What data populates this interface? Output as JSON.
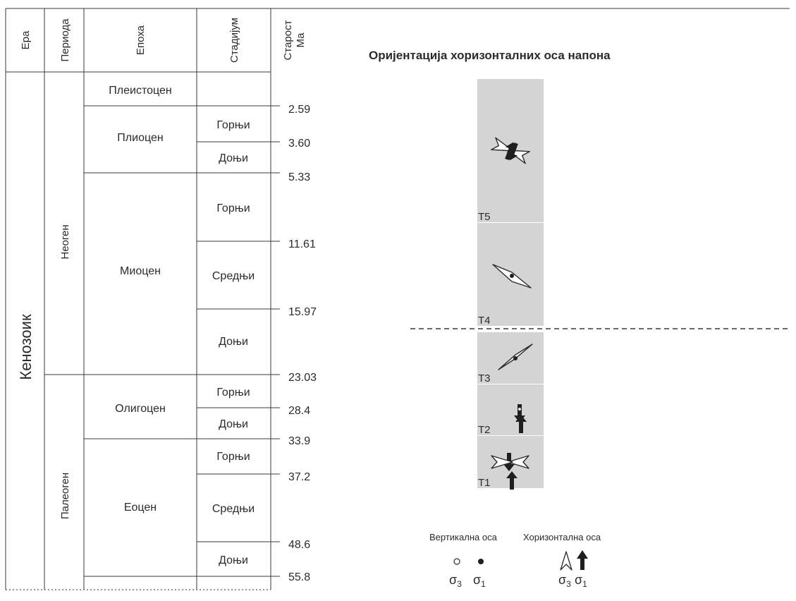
{
  "header": {
    "era": "Ера",
    "period": "Периода",
    "epoch": "Епоха",
    "stage": "Стадијум",
    "age_line1": "Старост",
    "age_line2": "Ма",
    "title": "Оријентација хоризонталних оса напона"
  },
  "era": "Кенозоик",
  "periods": [
    "Неоген",
    "Палеоген"
  ],
  "epochs": [
    "Плеистоцен",
    "Плиоцен",
    "Миоцен",
    "Олигоцен",
    "Еоцен"
  ],
  "stages": {
    "pliocene_upper": "Горњи",
    "pliocene_lower": "Доњи",
    "miocene_upper": "Горњи",
    "miocene_middle": "Средњи",
    "miocene_lower": "Доњи",
    "oligocene_upper": "Горњи",
    "oligocene_lower": "Доњи",
    "eocene_upper": "Горњи",
    "eocene_middle": "Средњи",
    "eocene_lower": "Доњи"
  },
  "ages": [
    "2.59",
    "3.60",
    "5.33",
    "11.61",
    "15.97",
    "23.03",
    "28.4",
    "33.9",
    "37.2",
    "48.6",
    "55.8"
  ],
  "phases": [
    "T5",
    "T4",
    "T3",
    "T2",
    "T1"
  ],
  "legend": {
    "vertical_axis": "Вертикална оса",
    "horizontal_axis": "Хоризонтална оса",
    "sigma3": "σ",
    "sigma1": "σ",
    "sub3": "3",
    "sub1": "1"
  },
  "colors": {
    "panel": "#d4d4d4",
    "line": "#3a3a3a",
    "arrow": "#1f1f1f"
  }
}
